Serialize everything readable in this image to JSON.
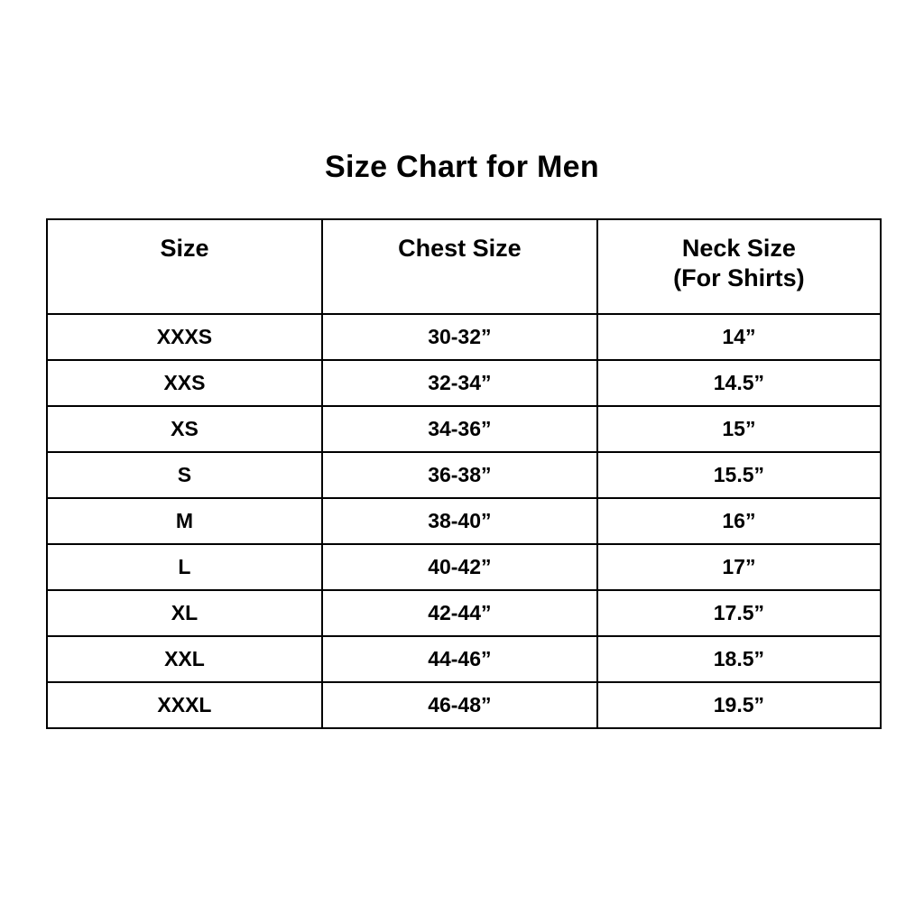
{
  "title": "Size Chart for Men",
  "chart_data": {
    "type": "table",
    "title": "Size Chart for Men",
    "columns": [
      {
        "label": "Size",
        "sublabel": ""
      },
      {
        "label": "Chest Size",
        "sublabel": ""
      },
      {
        "label": "Neck Size",
        "sublabel": "(For Shirts)"
      }
    ],
    "rows": [
      {
        "size": "XXXS",
        "chest_size": "30-32”",
        "neck_size": "14”"
      },
      {
        "size": "XXS",
        "chest_size": "32-34”",
        "neck_size": "14.5”"
      },
      {
        "size": "XS",
        "chest_size": "34-36”",
        "neck_size": "15”"
      },
      {
        "size": "S",
        "chest_size": "36-38”",
        "neck_size": "15.5”"
      },
      {
        "size": "M",
        "chest_size": "38-40”",
        "neck_size": "16”"
      },
      {
        "size": "L",
        "chest_size": "40-42”",
        "neck_size": "17”"
      },
      {
        "size": "XL",
        "chest_size": "42-44”",
        "neck_size": "17.5”"
      },
      {
        "size": "XXL",
        "chest_size": "44-46”",
        "neck_size": "18.5”"
      },
      {
        "size": "XXXL",
        "chest_size": "46-48”",
        "neck_size": "19.5”"
      }
    ],
    "layout": {
      "grid": "full-borders",
      "text_color": "#000000",
      "border_color": "#000000",
      "background_color": "#ffffff"
    }
  }
}
